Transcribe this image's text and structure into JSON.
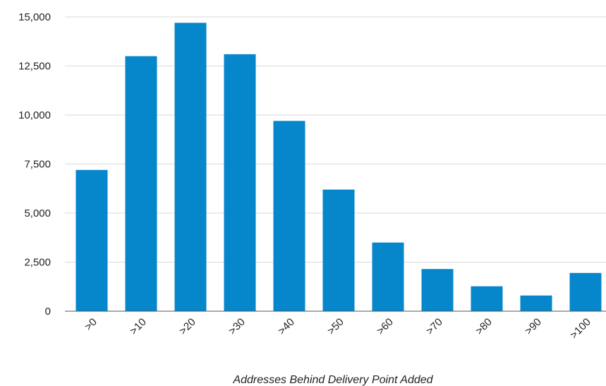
{
  "colors": {
    "bar": "#0686CB",
    "grid": "#DADADA",
    "axis": "#555555",
    "text": "#222222"
  },
  "chart_data": {
    "type": "bar",
    "title": "",
    "xlabel": "Addresses Behind Delivery Point Added",
    "ylabel": "",
    "categories": [
      ">0",
      ">10",
      ">20",
      ">30",
      ">40",
      ">50",
      ">60",
      ">70",
      ">80",
      ">90",
      ">100"
    ],
    "values": [
      7200,
      13000,
      14700,
      13100,
      9700,
      6200,
      3500,
      2150,
      1270,
      800,
      1950
    ],
    "ylim": [
      0,
      15000
    ],
    "yticks": [
      0,
      2500,
      5000,
      7500,
      10000,
      12500,
      15000
    ],
    "ytick_labels": [
      "0",
      "2,500",
      "5,000",
      "7,500",
      "10,000",
      "12,500",
      "15,000"
    ],
    "grid": true,
    "legend": "none"
  }
}
